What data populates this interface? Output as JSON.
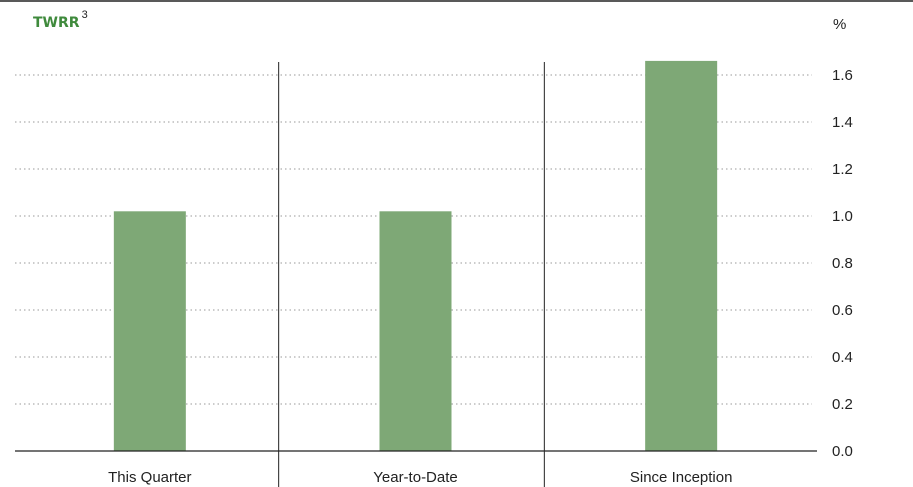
{
  "chart_data": {
    "type": "bar",
    "title": "TWRR",
    "title_superscript": "3",
    "unit_label": "%",
    "categories": [
      "This Quarter",
      "Year-to-Date",
      "Since Inception"
    ],
    "values": [
      1.02,
      1.02,
      1.66
    ],
    "yticks": [
      "0.0",
      "0.2",
      "0.4",
      "0.6",
      "0.8",
      "1.0",
      "1.2",
      "1.4",
      "1.6"
    ],
    "ylim": [
      0,
      1.6
    ],
    "yaxis_position": "right",
    "grid": "dotted horizontal",
    "colors": {
      "bar": "#7ea876",
      "title": "#3f8a3c",
      "axis": "#222222",
      "grid": "#9a9a9a"
    }
  }
}
